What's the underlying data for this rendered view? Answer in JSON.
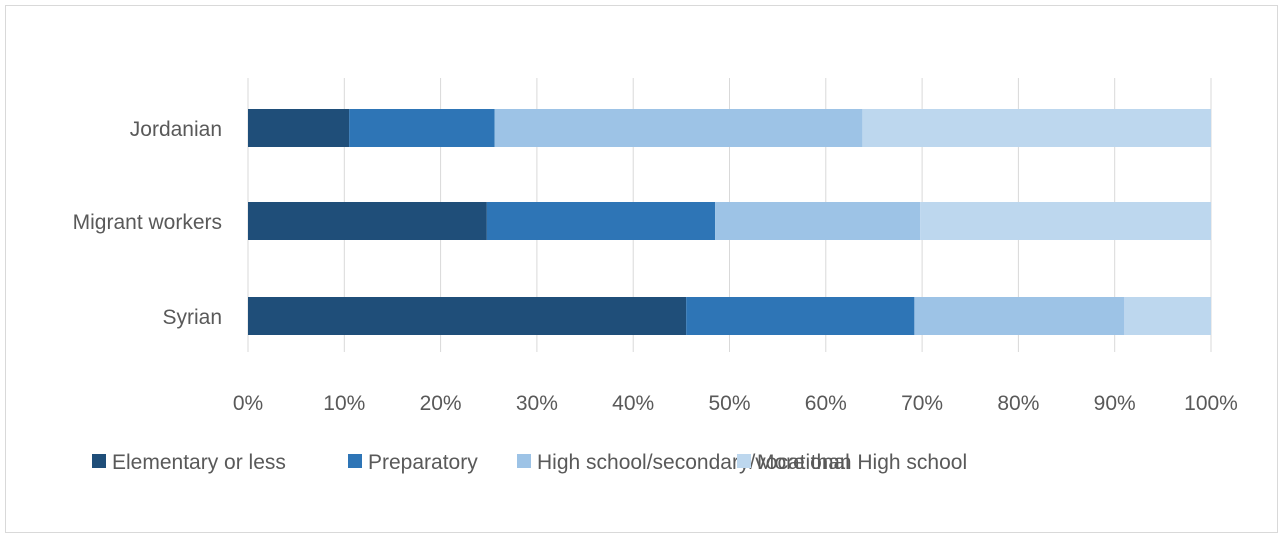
{
  "chart_data": {
    "type": "bar",
    "orientation": "horizontal",
    "stacked": true,
    "percent": true,
    "categories": [
      "Jordanian",
      "Migrant workers",
      "Syrian"
    ],
    "series": [
      {
        "name": "Elementary or less",
        "color": "#1f4e79",
        "values": [
          10.5,
          24.8,
          45.5
        ]
      },
      {
        "name": "Preparatory",
        "color": "#2e75b6",
        "values": [
          15.1,
          23.7,
          23.7
        ]
      },
      {
        "name": "High school/secondary/vocational",
        "color": "#9dc3e6",
        "values": [
          38.2,
          21.3,
          21.8
        ]
      },
      {
        "name": "More than High school",
        "color": "#bdd7ee",
        "values": [
          36.2,
          30.2,
          9.0
        ]
      }
    ],
    "xlim": [
      0,
      100
    ],
    "xticks": [
      "0%",
      "10%",
      "20%",
      "30%",
      "40%",
      "50%",
      "60%",
      "70%",
      "80%",
      "90%",
      "100%"
    ],
    "grid": true,
    "legend_position": "bottom",
    "title": "",
    "xlabel": "",
    "ylabel": ""
  }
}
